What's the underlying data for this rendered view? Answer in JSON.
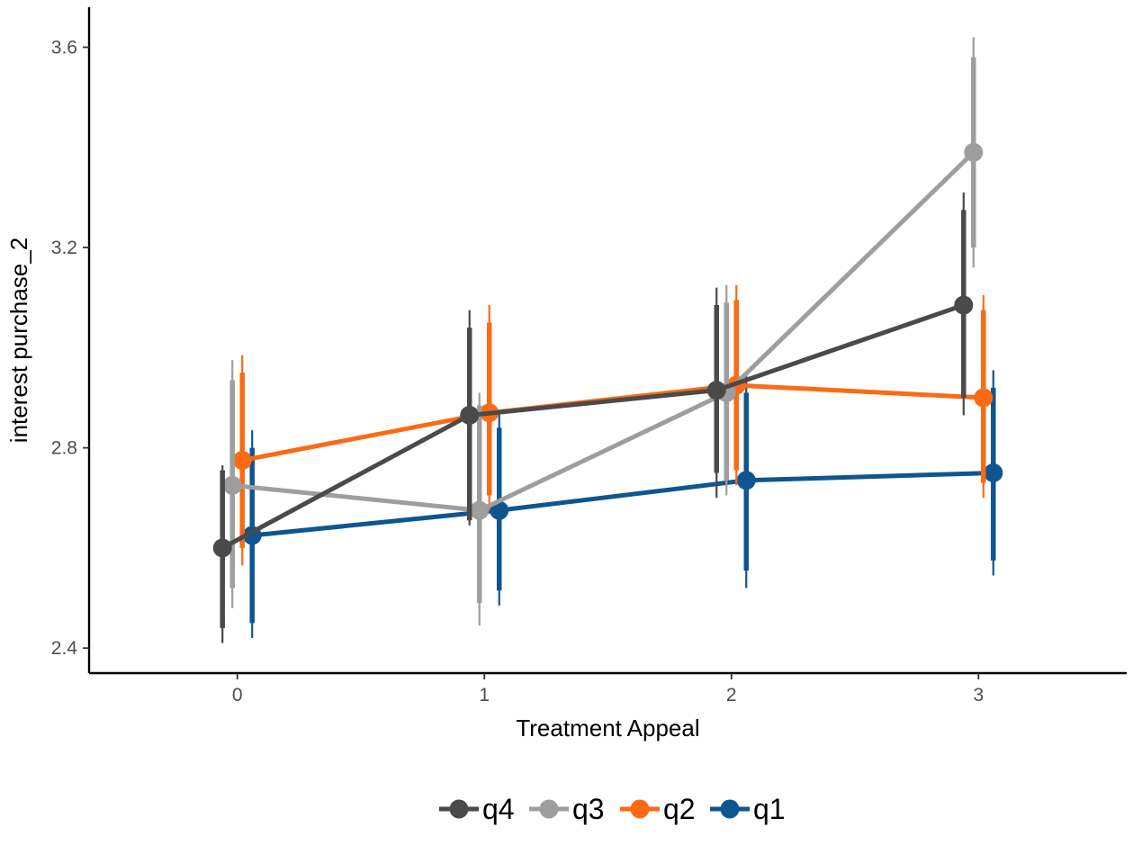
{
  "chart_data": {
    "type": "line",
    "title": "",
    "xlabel": "Treatment Appeal",
    "ylabel": "interest purchase_2",
    "x": [
      0,
      1,
      2,
      3
    ],
    "x_tick_labels": [
      "0",
      "1",
      "2",
      "3"
    ],
    "xlim": [
      -0.6,
      3.6
    ],
    "y_ticks": [
      2.4,
      2.8,
      3.2,
      3.6
    ],
    "y_tick_labels": [
      "2.4",
      "2.8",
      "3.2",
      "3.6"
    ],
    "ylim": [
      2.35,
      3.68
    ],
    "grid": false,
    "legend_position": "bottom",
    "error_bars": "thick inner interval with thin outer interval",
    "series": [
      {
        "name": "q4",
        "color": "#4a4a4a",
        "values": [
          2.6,
          2.865,
          2.915,
          3.085
        ],
        "inner_interval": [
          [
            2.44,
            2.755
          ],
          [
            2.655,
            3.04
          ],
          [
            2.75,
            3.085
          ],
          [
            2.9,
            3.275
          ]
        ],
        "outer_interval": [
          [
            2.41,
            2.765
          ],
          [
            2.645,
            3.075
          ],
          [
            2.7,
            3.12
          ],
          [
            2.865,
            3.31
          ]
        ]
      },
      {
        "name": "q3",
        "color": "#9e9e9e",
        "values": [
          2.725,
          2.675,
          2.91,
          3.39
        ],
        "inner_interval": [
          [
            2.52,
            2.935
          ],
          [
            2.49,
            2.885
          ],
          [
            2.735,
            3.09
          ],
          [
            3.2,
            3.58
          ]
        ],
        "outer_interval": [
          [
            2.48,
            2.975
          ],
          [
            2.445,
            2.91
          ],
          [
            2.705,
            3.125
          ],
          [
            3.16,
            3.62
          ]
        ]
      },
      {
        "name": "q2",
        "color": "#fb6a15",
        "values": [
          2.775,
          2.87,
          2.925,
          2.9
        ],
        "inner_interval": [
          [
            2.6,
            2.95
          ],
          [
            2.705,
            3.05
          ],
          [
            2.755,
            3.095
          ],
          [
            2.73,
            3.075
          ]
        ],
        "outer_interval": [
          [
            2.565,
            2.985
          ],
          [
            2.675,
            3.085
          ],
          [
            2.725,
            3.125
          ],
          [
            2.7,
            3.105
          ]
        ]
      },
      {
        "name": "q1",
        "color": "#0f5591",
        "values": [
          2.625,
          2.675,
          2.735,
          2.75
        ],
        "inner_interval": [
          [
            2.45,
            2.8
          ],
          [
            2.515,
            2.84
          ],
          [
            2.555,
            2.91
          ],
          [
            2.575,
            2.92
          ]
        ],
        "outer_interval": [
          [
            2.42,
            2.835
          ],
          [
            2.485,
            2.875
          ],
          [
            2.52,
            2.945
          ],
          [
            2.545,
            2.955
          ]
        ]
      }
    ],
    "legend_order": [
      "q4",
      "q3",
      "q2",
      "q1"
    ]
  }
}
